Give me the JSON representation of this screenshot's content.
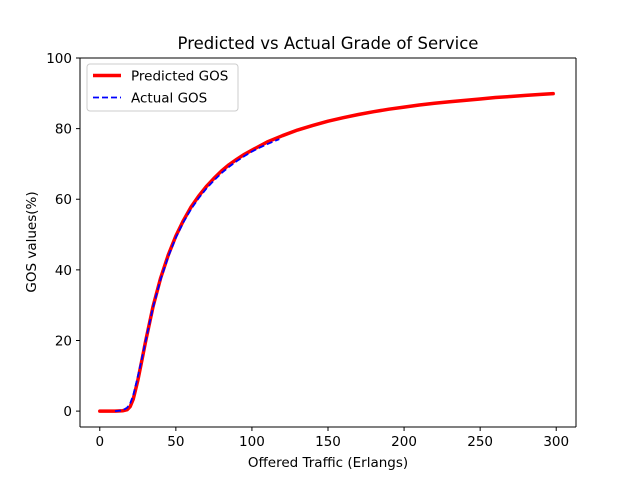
{
  "chart_data": {
    "type": "line",
    "title": "Predicted vs Actual Grade of Service",
    "xlabel": "Offered Traffic (Erlangs)",
    "ylabel": "GOS values(%)",
    "xlim": [
      -13,
      313
    ],
    "ylim": [
      -4.5,
      100
    ],
    "xticks": [
      0,
      50,
      100,
      150,
      200,
      250,
      300
    ],
    "yticks": [
      0,
      20,
      40,
      60,
      80,
      100
    ],
    "grid": false,
    "legend_position": "top-left",
    "series": [
      {
        "name": "Predicted GOS",
        "color": "#ff0000",
        "style": "solid",
        "x": [
          0,
          5,
          10,
          15,
          18,
          20,
          22,
          25,
          28,
          30,
          35,
          40,
          45,
          50,
          55,
          60,
          65,
          70,
          75,
          80,
          85,
          90,
          95,
          100,
          110,
          120,
          130,
          140,
          150,
          160,
          170,
          180,
          190,
          200,
          210,
          220,
          230,
          240,
          250,
          260,
          270,
          280,
          290,
          298
        ],
        "y": [
          0,
          0,
          0,
          0.1,
          0.4,
          1.3,
          3.4,
          8.7,
          15.1,
          19.5,
          29.6,
          37.7,
          44.2,
          49.6,
          54,
          57.8,
          60.9,
          63.6,
          65.9,
          68,
          69.8,
          71.3,
          72.7,
          73.9,
          76.2,
          78,
          79.6,
          80.9,
          82.1,
          83.1,
          84,
          84.8,
          85.5,
          86.1,
          86.7,
          87.2,
          87.6,
          88,
          88.4,
          88.8,
          89.1,
          89.4,
          89.7,
          89.9
        ]
      },
      {
        "name": "Actual GOS",
        "color": "#0000ff",
        "style": "dashed",
        "x": [
          10,
          15,
          18,
          20,
          22,
          25,
          28,
          30,
          35,
          40,
          45,
          50,
          55,
          60,
          65,
          70,
          75,
          80,
          85,
          90,
          95,
          100,
          105,
          110,
          115,
          118
        ],
        "y": [
          0,
          0.2,
          1,
          2.2,
          4.5,
          9.8,
          15.5,
          19.6,
          29.4,
          37.3,
          43.7,
          49.1,
          53.5,
          57.2,
          60.3,
          63,
          65.3,
          67.4,
          69.2,
          70.8,
          72.2,
          73.5,
          74.6,
          75.6,
          76.5,
          77
        ]
      }
    ]
  }
}
